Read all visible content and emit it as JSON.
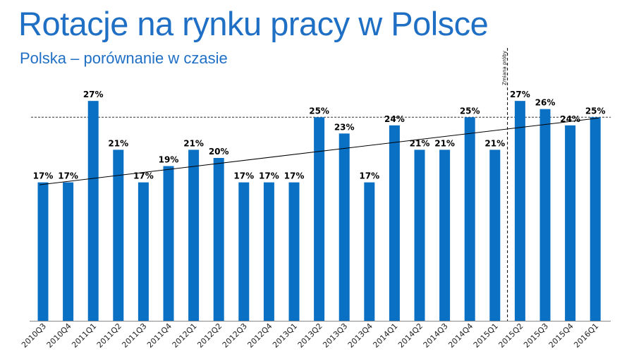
{
  "title": "Rotacje na rynku pracy w Polsce",
  "subtitle": "Polska – porównanie w czasie",
  "colors": {
    "title": "#1f6fc5",
    "bar": "#0a70c4"
  },
  "chart_data": {
    "type": "bar",
    "categories": [
      "2010Q3",
      "2010Q4",
      "2011Q1",
      "2011Q2",
      "2011Q3",
      "2011Q4",
      "2012Q1",
      "2012Q2",
      "2012Q3",
      "2012Q4",
      "2013Q1",
      "2013Q2",
      "2013Q3",
      "2013Q4",
      "2014Q1",
      "2014Q2",
      "2014Q3",
      "2014Q4",
      "2015Q1",
      "2015Q2",
      "2015Q3",
      "2015Q4",
      "2016Q1"
    ],
    "values": [
      17,
      17,
      27,
      21,
      17,
      19,
      21,
      20,
      17,
      17,
      17,
      25,
      23,
      17,
      24,
      21,
      21,
      25,
      21,
      27,
      26,
      24,
      25
    ],
    "data_labels": [
      "17%",
      "17%",
      "27%",
      "21%",
      "17%",
      "19%",
      "21%",
      "20%",
      "17%",
      "17%",
      "17%",
      "25%",
      "23%",
      "17%",
      "24%",
      "21%",
      "21%",
      "25%",
      "21%",
      "27%",
      "26%",
      "24%",
      "25%"
    ],
    "ylim": [
      0,
      30
    ],
    "reference_line": {
      "value": 25,
      "style": "dashed"
    },
    "trendline": {
      "start": 16.7,
      "end": 24.9
    },
    "annotation": {
      "text": "Zmiana próby",
      "between": [
        "2015Q1",
        "2015Q2"
      ]
    },
    "grid": false
  }
}
